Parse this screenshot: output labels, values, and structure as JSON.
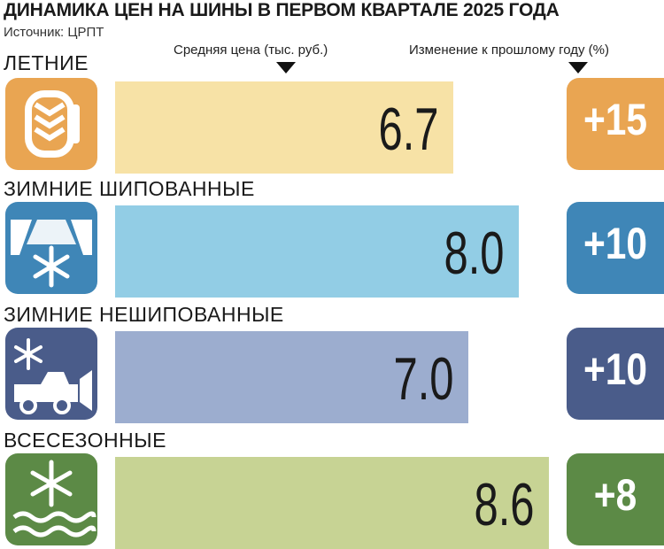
{
  "title": "ДИНАМИКА ЦЕН НА ШИНЫ В ПЕРВОМ КВАРТАЛЕ 2025 ГОДА",
  "source": "Источник: ЦРПТ",
  "headers": {
    "price": "Средняя цена (тыс. руб.)",
    "change": "Изменение к прошлому году (%)"
  },
  "colors": {
    "summer": "#e9a552",
    "summer_bar": "#f7e2a6",
    "studded": "#3f86b7",
    "studded_bar": "#92cde5",
    "nonstudded": "#4a5c8a",
    "nonstudded_bar": "#9cadcf",
    "allseason": "#5c8a46",
    "allseason_bar": "#c7d394"
  },
  "chart_data": {
    "type": "bar",
    "title": "ДИНАМИКА ЦЕН НА ШИНЫ В ПЕРВОМ КВАРТАЛЕ 2025 ГОДА",
    "categories": [
      "ЛЕТНИЕ",
      "ЗИМНИЕ ШИПОВАННЫЕ",
      "ЗИМНИЕ НЕШИПОВАННЫЕ",
      "ВСЕСЕЗОННЫЕ"
    ],
    "series": [
      {
        "name": "Средняя цена (тыс. руб.)",
        "values": [
          6.7,
          8.0,
          7.0,
          8.6
        ]
      },
      {
        "name": "Изменение к прошлому году (%)",
        "values": [
          15,
          10,
          10,
          8
        ]
      }
    ],
    "value_labels": [
      "6.7",
      "8.0",
      "7.0",
      "8.6"
    ],
    "change_labels": [
      "+15",
      "+10",
      "+10",
      "+8"
    ],
    "icons": [
      "tire-icon",
      "snowy-road-icon",
      "snow-plow-icon",
      "snowflake-waves-icon"
    ]
  }
}
